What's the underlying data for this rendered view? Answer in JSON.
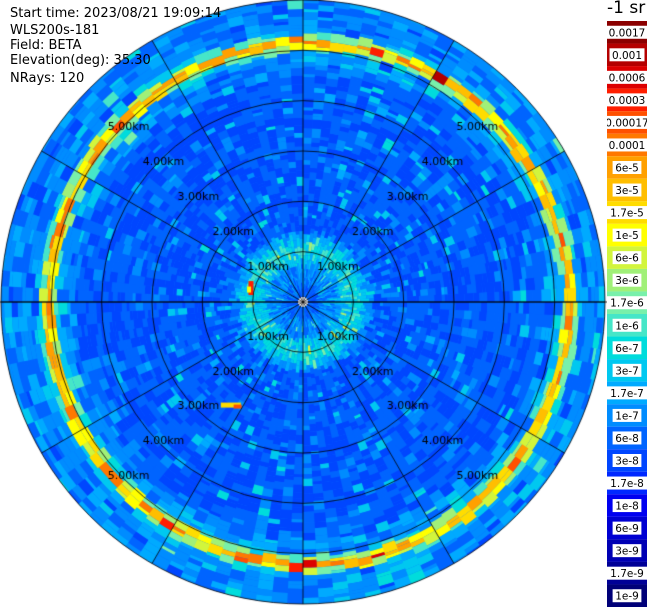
{
  "header": {
    "start_time": "Start time: 2023/08/21 19:09:14",
    "instrument": "WLS200s-181",
    "field": "Field: BETA",
    "elevation": "Elevation(deg): 35.30",
    "nrays": "NRays: 120"
  },
  "chart_data": {
    "type": "heatmap",
    "projection": "polar-ppi",
    "range_rings_km": [
      1,
      2,
      3,
      4,
      5,
      6
    ],
    "range_labels": [
      "1.00km",
      "2.00km",
      "3.00km",
      "4.00km",
      "5.00km"
    ],
    "max_range_km": 6,
    "spokes_deg": [
      0,
      30,
      60,
      90,
      120,
      150,
      180,
      210,
      240,
      270,
      300,
      330
    ],
    "nrays": 120,
    "colorbar": {
      "unit": "-1 sr",
      "labels": [
        "0.0017",
        "0.001",
        "0.0006",
        "0.0003",
        "0.00017",
        "0.0001",
        "6e-5",
        "3e-5",
        "1.7e-5",
        "1e-5",
        "6e-6",
        "3e-6",
        "1.7e-6",
        "1e-6",
        "6e-7",
        "3e-7",
        "1.7e-7",
        "1e-7",
        "6e-8",
        "3e-8",
        "1.7e-8",
        "1e-8",
        "6e-9",
        "3e-9",
        "1.7e-9",
        "1e-9"
      ],
      "colors": [
        "#8b0000",
        "#b40000",
        "#dc0000",
        "#ff1e00",
        "#ff5000",
        "#ff7800",
        "#ffa000",
        "#ffbe00",
        "#ffdc00",
        "#ffff00",
        "#d2f53c",
        "#a0f078",
        "#78f0aa",
        "#46e6c8",
        "#00dcdc",
        "#00c8f0",
        "#00aaff",
        "#008cff",
        "#0064ff",
        "#0046ff",
        "#0028ff",
        "#0000f0",
        "#0000d2",
        "#0000b4",
        "#000096",
        "#000078"
      ]
    },
    "features": [
      {
        "type": "ring",
        "range_km": 5.15,
        "value": "1.7e-5"
      },
      {
        "type": "ring",
        "range_km": 5.3,
        "value": "0.00017"
      },
      {
        "type": "ring",
        "range_km": 1.05,
        "value": "1e-6"
      }
    ]
  }
}
